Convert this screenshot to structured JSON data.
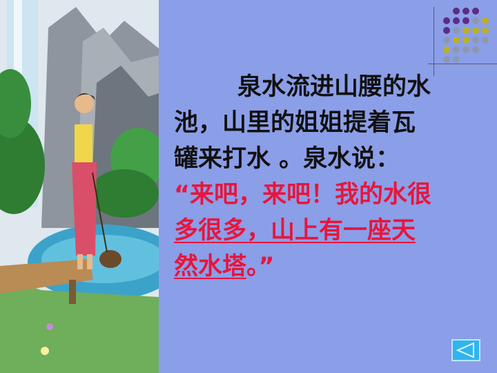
{
  "slide": {
    "paragraph": {
      "line1": "泉水流进山腰的水",
      "line2": "池，山里的姐姐提着瓦",
      "line3": "罐来打水 。泉水说：",
      "quote_line1": "“来吧，来吧！我的水很",
      "quote_line2": "多很多，山上有一座天",
      "quote_line3_underlined": "然水塔",
      "quote_line3_end": "。”"
    },
    "nav_button_icon": "back-triangle-icon"
  },
  "colors": {
    "background": "#8b9ee8",
    "quote_text": "#e8153c",
    "dot_purple": "#5b2d82",
    "dot_olive": "#b8b12a",
    "dot_gray": "#8d98b0",
    "nav_button": "#2fb5ef"
  }
}
